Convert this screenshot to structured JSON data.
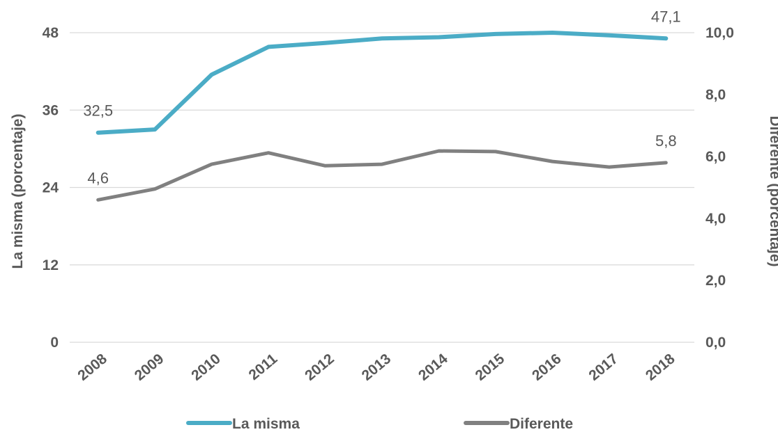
{
  "chart_data": {
    "type": "line",
    "categories": [
      "2008",
      "2009",
      "2010",
      "2011",
      "2012",
      "2013",
      "2014",
      "2015",
      "2016",
      "2017",
      "2018"
    ],
    "series": [
      {
        "name": "La misma",
        "axis": "left",
        "color": "#4bacc6",
        "values": [
          32.5,
          33.0,
          41.5,
          45.8,
          46.4,
          47.1,
          47.3,
          47.8,
          48.0,
          47.6,
          47.1
        ]
      },
      {
        "name": "Diferente",
        "axis": "right",
        "color": "#808080",
        "values": [
          4.6,
          4.95,
          5.75,
          6.12,
          5.7,
          5.75,
          6.18,
          6.16,
          5.84,
          5.66,
          5.8
        ]
      }
    ],
    "y_left": {
      "label": "La misma (porcentaje)",
      "ylim": [
        0,
        48
      ],
      "ticks": [
        "0",
        "12",
        "24",
        "36",
        "48"
      ]
    },
    "y_right": {
      "label": "Diferente (porcentaje)",
      "ylim": [
        0,
        10
      ],
      "ticks": [
        "0,0",
        "2,0",
        "4,0",
        "6,0",
        "8,0",
        "10,0"
      ]
    },
    "annotations": [
      {
        "series": 0,
        "index": 0,
        "text": "32,5"
      },
      {
        "series": 0,
        "index": 10,
        "text": "47,1"
      },
      {
        "series": 1,
        "index": 0,
        "text": "4,6"
      },
      {
        "series": 1,
        "index": 10,
        "text": "5,8"
      }
    ],
    "grid": true,
    "legend": "bottom"
  }
}
